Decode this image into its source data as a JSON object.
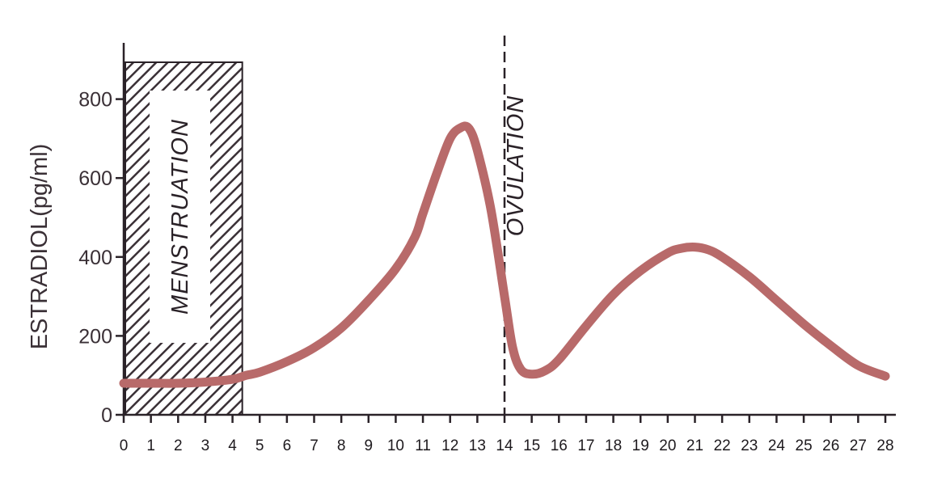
{
  "chart_data": {
    "type": "line",
    "ylabel": "ESTRADIOL(pg/ml)",
    "xlabel": "",
    "xlim": [
      0,
      28
    ],
    "ylim": [
      0,
      900
    ],
    "y_ticks": [
      0,
      200,
      400,
      600,
      800
    ],
    "x_ticks": [
      0,
      1,
      2,
      3,
      4,
      5,
      6,
      7,
      8,
      9,
      10,
      11,
      12,
      13,
      14,
      15,
      16,
      17,
      18,
      19,
      20,
      21,
      22,
      23,
      24,
      25,
      26,
      27,
      28
    ],
    "grid": false,
    "legend": "none",
    "line_color": "#b86a6a",
    "series": [
      {
        "x": [
          0,
          1,
          2,
          3,
          4,
          4.5,
          5,
          6,
          7,
          8,
          9,
          10,
          10.7,
          11,
          11.5,
          12,
          12.4,
          12.7,
          13,
          13.5,
          14,
          14.3,
          14.6,
          15,
          15.5,
          16,
          17,
          18,
          19,
          20,
          20.5,
          21,
          21.5,
          22,
          23,
          24,
          25,
          26,
          27,
          28
        ],
        "values": [
          80,
          80,
          80,
          83,
          90,
          100,
          108,
          135,
          170,
          220,
          290,
          370,
          450,
          510,
          610,
          700,
          728,
          725,
          670,
          520,
          300,
          170,
          115,
          103,
          112,
          140,
          225,
          305,
          365,
          410,
          422,
          425,
          418,
          400,
          350,
          290,
          230,
          175,
          125,
          98
        ]
      }
    ],
    "regions": [
      {
        "label": "MENSTRUATION",
        "x_start": 0,
        "x_end": 4.3
      }
    ],
    "annotations": [
      {
        "label": "OVULATION",
        "x": 14
      }
    ]
  }
}
